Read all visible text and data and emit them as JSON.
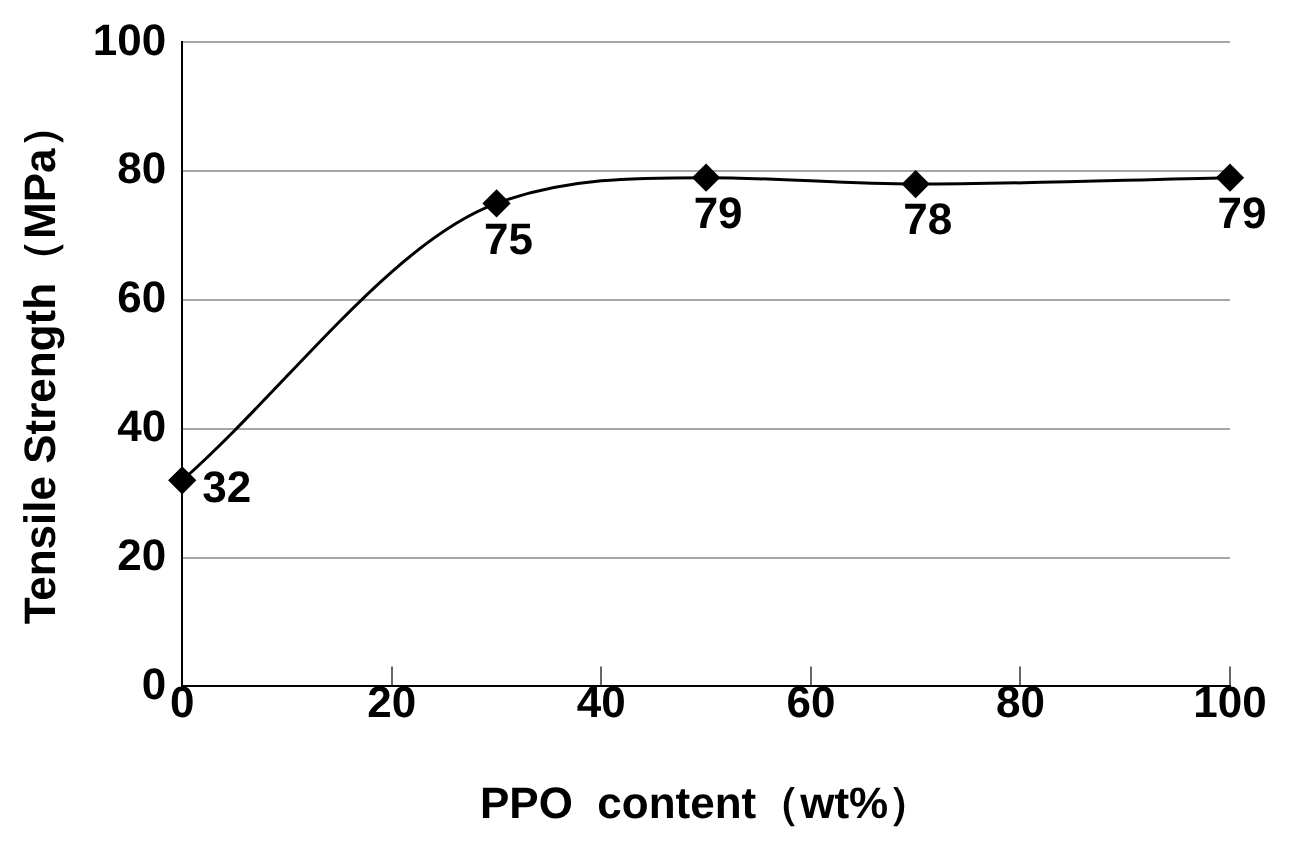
{
  "chart_data": {
    "type": "line",
    "xlabel": "PPO  content（wt%）",
    "ylabel": "Tensile Strength（MPa）",
    "series": [
      {
        "x": [
          0,
          30,
          50,
          70,
          100
        ],
        "values": [
          32,
          75,
          79,
          78,
          79
        ],
        "color": "#000000"
      }
    ],
    "xlim": [
      0,
      100
    ],
    "xticks": [
      0,
      20,
      40,
      60,
      80,
      100
    ],
    "ylim": [
      0,
      100
    ],
    "yticks": [
      0,
      20,
      40,
      60,
      80,
      100
    ],
    "grid": "y",
    "legend": false,
    "marker": "diamond",
    "line_style": "solid",
    "data_labels": true
  }
}
